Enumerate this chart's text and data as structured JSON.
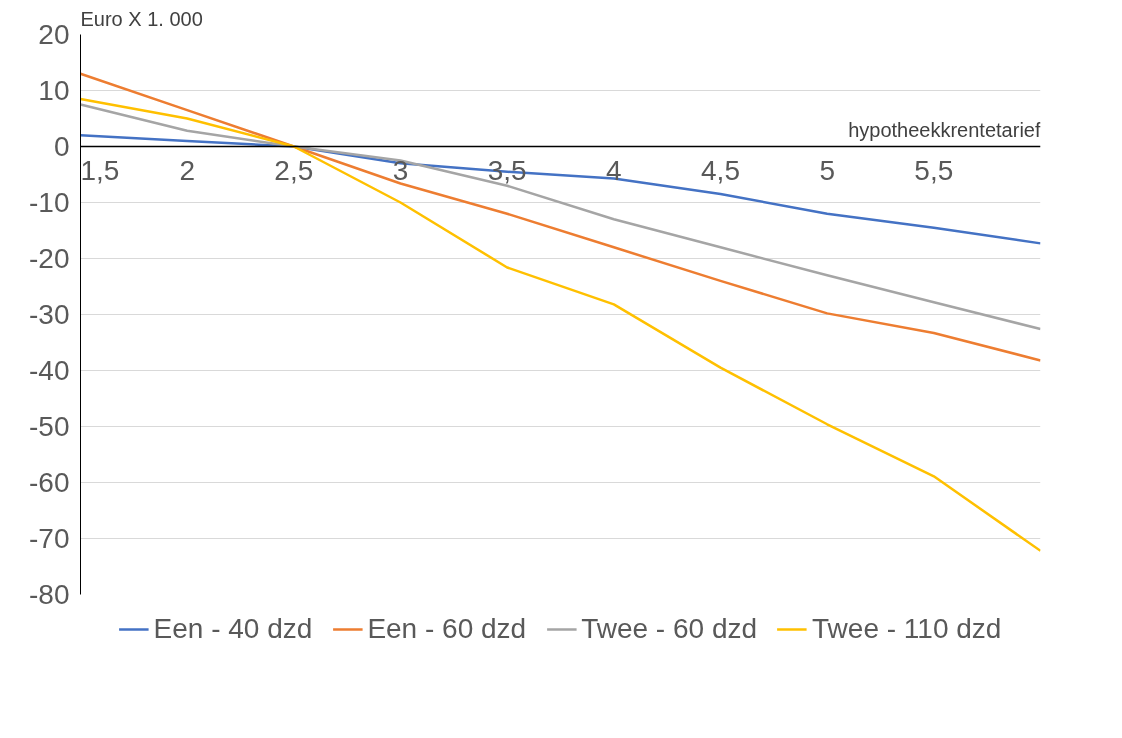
{
  "chart_data": {
    "type": "line",
    "xlabel": "hypotheekkrentetarief",
    "ylabel": "Euro X 1. 000",
    "x": [
      1.5,
      2,
      2.5,
      3,
      3.5,
      4,
      4.5,
      5,
      5.5,
      6
    ],
    "series": [
      {
        "name": "Een - 40 dzd",
        "color": "#4472c4",
        "values": [
          2,
          1,
          0,
          -3,
          -4.5,
          -5.7,
          -8.5,
          -12,
          -14.5,
          -17.3
        ]
      },
      {
        "name": "Een - 60 dzd",
        "color": "#ed7d31",
        "values": [
          13,
          6.5,
          0,
          -6.6,
          -12,
          -18,
          -24,
          -29.8,
          -33.3,
          -38.2
        ]
      },
      {
        "name": "Twee - 60 dzd",
        "color": "#a5a5a5",
        "values": [
          7.5,
          2.8,
          0,
          -2.5,
          -7,
          -13,
          -18,
          -23,
          -27.8,
          -32.6
        ]
      },
      {
        "name": "Twee - 110 dzd",
        "color": "#ffc000",
        "values": [
          8.5,
          5,
          0,
          -10,
          -21.6,
          -28.2,
          -39.5,
          -49.6,
          -58.9,
          -72.2
        ]
      }
    ],
    "xlim": [
      1.5,
      6
    ],
    "ylim": [
      -80,
      20
    ],
    "xticks": [
      {
        "value": 1.5,
        "label": "1,5"
      },
      2,
      {
        "value": 2.5,
        "label": "2,5"
      },
      3,
      {
        "value": 3.5,
        "label": "3,5"
      },
      4,
      {
        "value": 4.5,
        "label": "4,5"
      },
      5,
      {
        "value": 5.5,
        "label": "5,5"
      }
    ],
    "yticks": [
      -80,
      -70,
      -60,
      -50,
      -40,
      -30,
      -20,
      -10,
      0,
      10,
      20
    ],
    "grid": "y",
    "legend": "bottom",
    "marker": "none",
    "line_style": "solid"
  }
}
